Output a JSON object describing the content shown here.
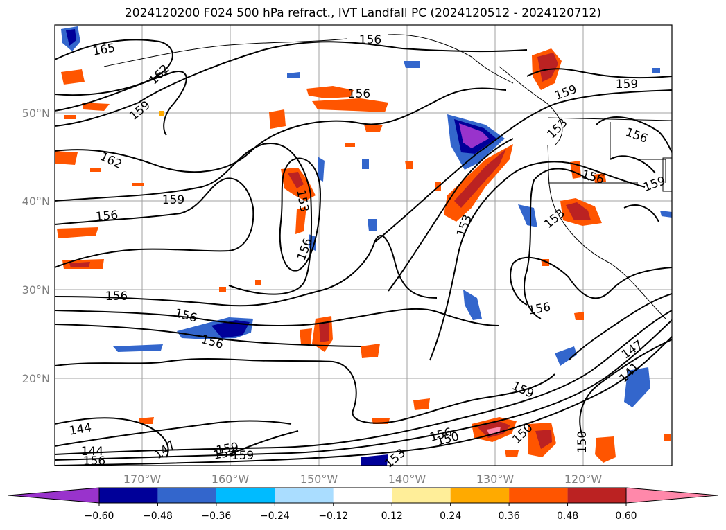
{
  "title": "2024120200 F024 500 hPa refract., IVT Landfall PC (2024120512 - 2024120712)",
  "map": {
    "lat_labels": [
      "50°N",
      "40°N",
      "30°N",
      "20°N"
    ],
    "lon_labels": [
      "170°W",
      "160°W",
      "150°W",
      "140°W",
      "130°W",
      "120°W"
    ],
    "grid_line_color": "#a0a0a0",
    "axis_label_color": "#808080",
    "contour_labels": [
      "165",
      "162",
      "159",
      "156",
      "156",
      "159",
      "162",
      "159",
      "156",
      "159",
      "153",
      "156",
      "156",
      "156",
      "153",
      "153",
      "159",
      "156",
      "156",
      "156",
      "156",
      "147",
      "141",
      "159",
      "150",
      "156",
      "150",
      "144",
      "147",
      "144",
      "150",
      "159",
      "153",
      "159",
      "153",
      "156",
      "153"
    ]
  },
  "colorbar": {
    "ticks": [
      "−0.60",
      "−0.48",
      "−0.36",
      "−0.24",
      "−0.12",
      "0.12",
      "0.24",
      "0.36",
      "0.48",
      "0.60"
    ],
    "colors": [
      "#9933cc",
      "#000099",
      "#3366cc",
      "#00bbff",
      "#aaddff",
      "#ffffff",
      "#ffee99",
      "#ffaa00",
      "#ff5500",
      "#bb2222",
      "#ff88aa"
    ],
    "extend": "both"
  }
}
